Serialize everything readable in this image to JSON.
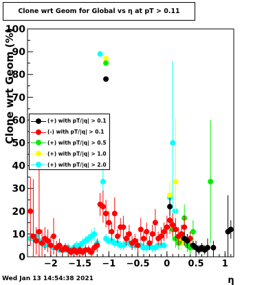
{
  "title": "Clone wrt Geom for Global vs   η at pT > 0.11",
  "footer": "Wed Jan 13 14:54:38 2021",
  "chart_data": {
    "type": "scatter",
    "xlabel": "η",
    "ylabel": "Clone wrt Geom (%)",
    "xlim": [
      -2.4,
      1.15
    ],
    "ylim": [
      0,
      100
    ],
    "xticks": [
      -2,
      -1.5,
      -1,
      -0.5,
      0,
      0.5,
      1
    ],
    "xtick_labels": [
      "−2",
      "−1.5",
      "−1",
      "−0.5",
      "0",
      "0.5",
      "1"
    ],
    "yticks": [
      0,
      10,
      20,
      30,
      40,
      50,
      60,
      70,
      80,
      90,
      100
    ],
    "ytick_labels": [
      "0",
      "10",
      "20",
      "30",
      "40",
      "50",
      "60",
      "70",
      "80",
      "90",
      "100"
    ],
    "series": [
      {
        "name": "(+) with pT/|q| > 0.1",
        "color": "#000000",
        "x": [
          -1.05,
          0.05,
          0.3,
          0.35,
          0.45,
          0.5,
          0.55,
          0.6,
          0.65,
          0.7,
          0.8,
          1.05,
          1.1
        ],
        "y": [
          78,
          22,
          8,
          7,
          5,
          4,
          3,
          4,
          3,
          4,
          4,
          11,
          12
        ],
        "err": [
          0,
          4,
          3,
          3,
          2,
          3,
          2,
          2,
          2,
          4,
          3,
          16,
          4
        ]
      },
      {
        "name": "(-) with pT/|q| > 0.1",
        "color": "#ff0000",
        "x": [
          -2.35,
          -2.3,
          -2.25,
          -2.2,
          -2.15,
          -2.1,
          -2.05,
          -2.0,
          -1.95,
          -1.9,
          -1.85,
          -1.8,
          -1.75,
          -1.7,
          -1.65,
          -1.6,
          -1.55,
          -1.5,
          -1.45,
          -1.4,
          -1.35,
          -1.3,
          -1.25,
          -1.2,
          -1.15,
          -1.1,
          -1.05,
          -1.0,
          -0.95,
          -0.9,
          -0.85,
          -0.8,
          -0.75,
          -0.7,
          -0.65,
          -0.6,
          -0.55,
          -0.5,
          -0.45,
          -0.4,
          -0.35,
          -0.3,
          -0.25,
          -0.2,
          -0.15,
          -0.1,
          -0.05,
          0.0,
          0.05,
          0.1,
          0.15,
          0.2,
          0.25,
          0.3,
          0.35,
          0.4
        ],
        "y": [
          20,
          9,
          7,
          11,
          6,
          8,
          7,
          5,
          9,
          4,
          5,
          3,
          4,
          3,
          2,
          3,
          2,
          3,
          2,
          3,
          3,
          2,
          4,
          5,
          23,
          22,
          19,
          15,
          11,
          19,
          9,
          13,
          13,
          8,
          10,
          6,
          7,
          5,
          12,
          8,
          11,
          6,
          10,
          15,
          8,
          9,
          11,
          13,
          16,
          14,
          12,
          9,
          10,
          13,
          7,
          8
        ],
        "err": [
          15,
          25,
          6,
          45,
          6,
          5,
          5,
          4,
          8,
          3,
          3,
          2,
          2,
          2,
          2,
          2,
          2,
          2,
          2,
          2,
          2,
          2,
          2,
          3,
          5,
          7,
          6,
          5,
          4,
          7,
          3,
          4,
          5,
          3,
          4,
          3,
          3,
          3,
          5,
          3,
          4,
          3,
          4,
          6,
          3,
          4,
          4,
          5,
          6,
          5,
          5,
          4,
          4,
          5,
          3,
          3
        ]
      },
      {
        "name": "(+) with pT/|q| > 0.5",
        "color": "#00ee00",
        "x": [
          -1.05,
          0.1,
          0.15,
          0.2,
          0.25,
          0.3,
          0.35,
          0.4,
          0.45,
          0.75
        ],
        "y": [
          85,
          12,
          8,
          6,
          10,
          17,
          5,
          4,
          11,
          33
        ],
        "err": [
          0,
          5,
          4,
          3,
          4,
          6,
          3,
          3,
          5,
          27
        ]
      },
      {
        "name": "(+) with pT/|q| > 1.0",
        "color": "#ffff00",
        "x": [
          -1.05,
          0.05,
          0.15,
          0.2,
          0.25
        ],
        "y": [
          87,
          27,
          33,
          8,
          6
        ],
        "err": [
          0,
          6,
          28,
          3,
          3
        ]
      },
      {
        "name": "(+) with pT/|q| > 2.0",
        "color": "#00ffff",
        "x": [
          -2.35,
          -2.3,
          -2.25,
          -2.2,
          -2.15,
          -2.1,
          -2.05,
          -2.0,
          -1.95,
          -1.9,
          -1.85,
          -1.8,
          -1.75,
          -1.7,
          -1.65,
          -1.6,
          -1.55,
          -1.5,
          -1.45,
          -1.4,
          -1.35,
          -1.3,
          -1.25,
          -1.2,
          -1.15,
          -1.1,
          -1.05,
          -1.0,
          -0.95,
          -0.9,
          -0.85,
          -0.8,
          -0.75,
          -0.7,
          -0.65,
          -0.6,
          -0.55,
          -0.5,
          -0.45,
          -0.4,
          -0.35,
          -0.3,
          -0.25,
          -0.2,
          -0.15,
          -0.1,
          -0.05,
          0.0,
          0.05,
          0.1,
          0.15
        ],
        "y": [
          8,
          8,
          9,
          7,
          6,
          5,
          6,
          5,
          4,
          4,
          3,
          3,
          3,
          4,
          3,
          4,
          5,
          5,
          6,
          7,
          8,
          9,
          10,
          6,
          89,
          33,
          8,
          7,
          7,
          6,
          6,
          5,
          5,
          6,
          6,
          5,
          5,
          5,
          5,
          4,
          4,
          5,
          4,
          4,
          5,
          5,
          5,
          13,
          26,
          50,
          20
        ],
        "err": [
          3,
          3,
          3,
          2,
          2,
          2,
          2,
          2,
          2,
          2,
          1,
          1,
          1,
          2,
          1,
          2,
          2,
          2,
          2,
          2,
          2,
          3,
          3,
          2,
          0,
          5,
          2,
          2,
          2,
          2,
          2,
          2,
          2,
          2,
          2,
          2,
          2,
          2,
          2,
          2,
          2,
          2,
          2,
          2,
          2,
          2,
          2,
          4,
          6,
          36,
          8
        ]
      }
    ]
  }
}
